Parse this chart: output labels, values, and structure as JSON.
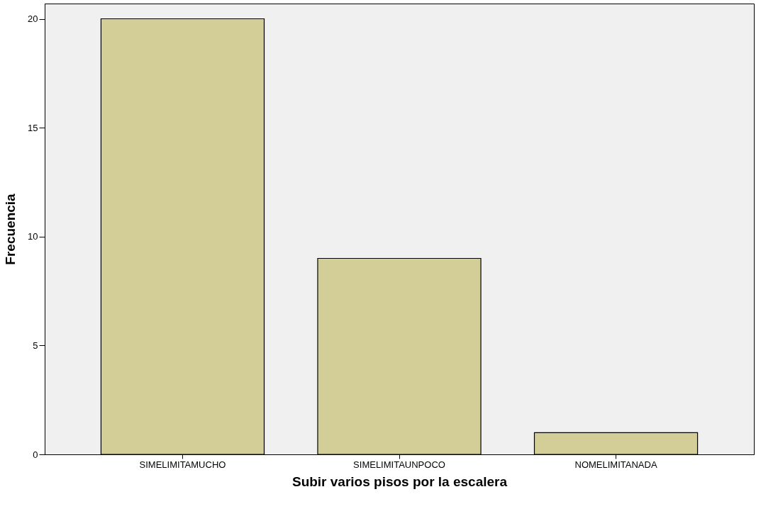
{
  "chart_data": {
    "type": "bar",
    "xlabel": "Subir varios pisos por la escalera",
    "ylabel": "Frecuencia",
    "categories": [
      "SIMELIMITAMUCHO",
      "SIMELIMITAUNPOCO",
      "NOMELIMITANADA"
    ],
    "values": [
      20,
      9,
      1
    ],
    "color": "#d3ce97",
    "ylim": [
      0,
      20.7
    ],
    "yticks": [
      0,
      5,
      10,
      15,
      20
    ],
    "grid": false
  }
}
